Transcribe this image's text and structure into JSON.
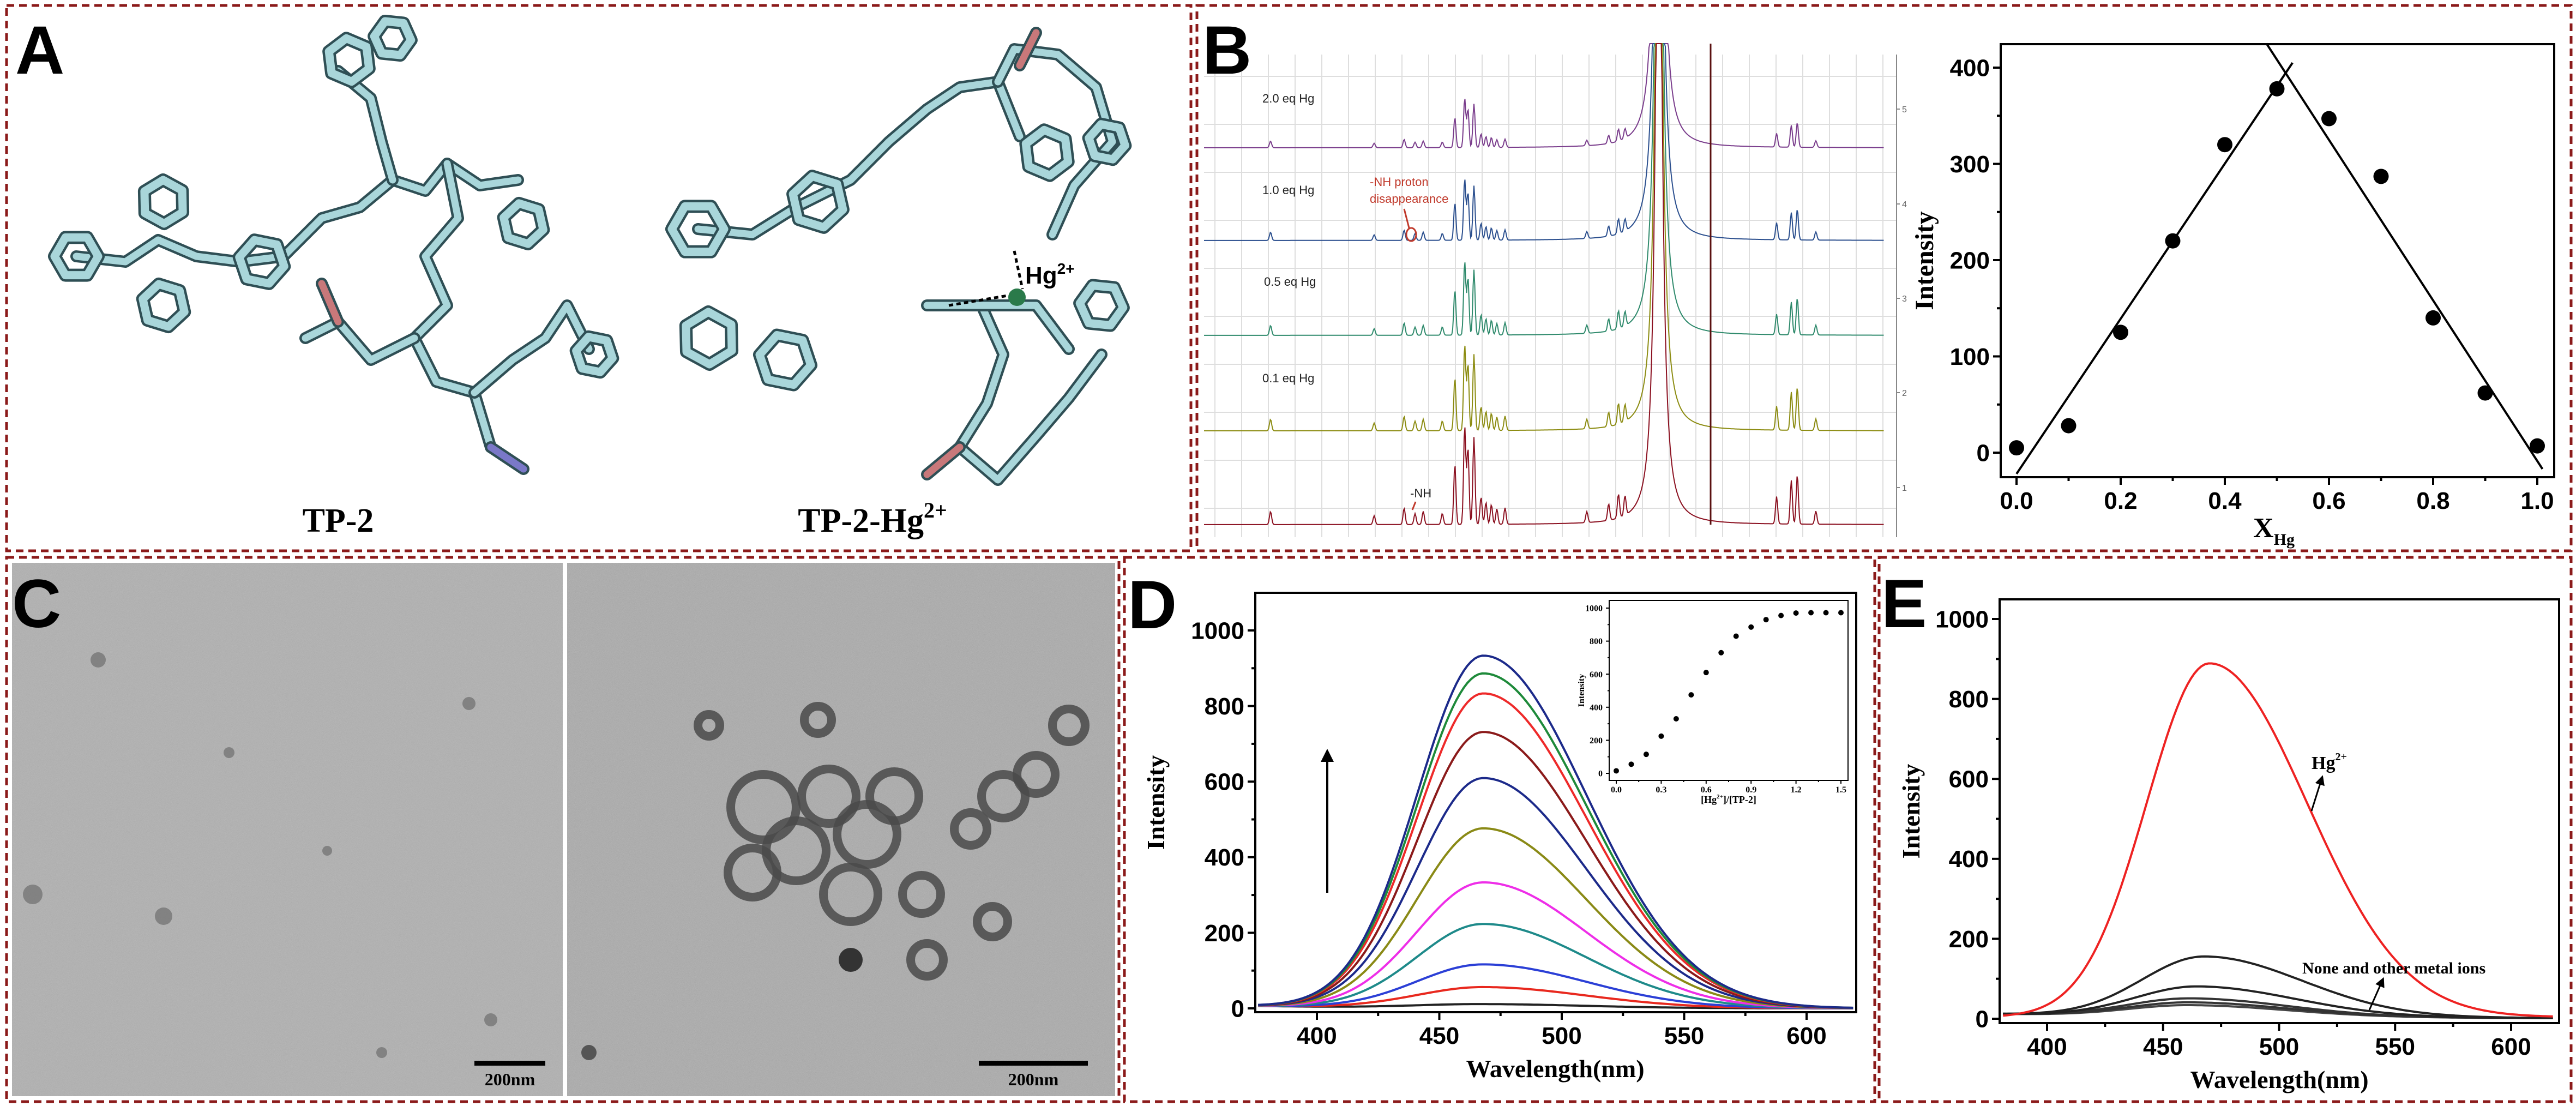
{
  "colors": {
    "panel_border": "#8b1a1a",
    "molecule": "#a9d6da",
    "highlight_red": "#e8281e"
  },
  "panel_a": {
    "letter": "A",
    "molecule_left_label": "TP-2",
    "molecule_right_label_base": "TP-2-Hg",
    "molecule_right_label_sup": "2+",
    "ion_label_base": "Hg",
    "ion_label_sup": "2+"
  },
  "panel_b": {
    "letter": "B",
    "nmr": {
      "spectra_labels": [
        "2.0 eq Hg",
        "1.0 eq Hg",
        "0.5 eq Hg",
        "0.1 eq Hg",
        ""
      ],
      "spectra_colors": [
        "#7a3d8c",
        "#2b4f8e",
        "#2f8a6c",
        "#8c8c12",
        "#8b1020"
      ],
      "axis_ticks": [
        "5",
        "4",
        "3",
        "2",
        "1"
      ],
      "annotation_line1": "-NH proton",
      "annotation_line2": "disappearance",
      "nh_label": "-NH"
    }
  },
  "panel_c": {
    "letter": "C",
    "scale_bar_left": "200nm",
    "scale_bar_right": "200nm"
  },
  "panel_d": {
    "letter": "D"
  },
  "panel_e": {
    "letter": "E",
    "annotation_hg_base": "Hg",
    "annotation_hg_sup": "2+",
    "annotation_others": "None and other metal ions"
  },
  "chart_data": [
    {
      "id": "job-plot",
      "type": "scatter",
      "xlabel": "X",
      "xlabel_sub": "Hg",
      "ylabel": "Intensity",
      "xlim": [
        -0.03,
        1.03
      ],
      "ylim": [
        -25,
        425
      ],
      "xticks": [
        "0.0",
        "0.2",
        "0.4",
        "0.6",
        "0.8",
        "1.0"
      ],
      "yticks": [
        "0",
        "100",
        "200",
        "300",
        "400"
      ],
      "x": [
        0.0,
        0.1,
        0.2,
        0.3,
        0.4,
        0.5,
        0.6,
        0.7,
        0.8,
        0.9,
        1.0
      ],
      "y": [
        5,
        28,
        125,
        220,
        320,
        378,
        347,
        287,
        140,
        62,
        7
      ],
      "fit_lines": [
        {
          "x": [
            0.0,
            0.53
          ],
          "y": [
            -22,
            405
          ]
        },
        {
          "x": [
            0.48,
            1.01
          ],
          "y": [
            425,
            -17
          ]
        }
      ]
    },
    {
      "id": "titration-spectra",
      "type": "line",
      "xlabel": "Wavelength(nm)",
      "ylabel": "Intensity",
      "xlim": [
        375,
        620
      ],
      "ylim": [
        0,
        1100
      ],
      "xticks": [
        "400",
        "450",
        "500",
        "550",
        "600"
      ],
      "yticks": [
        "0",
        "200",
        "400",
        "600",
        "800",
        "1000"
      ],
      "peak_wavelength": 468,
      "series": [
        {
          "peak": 10,
          "color": "#222222"
        },
        {
          "peak": 55,
          "color": "#e8281e"
        },
        {
          "peak": 115,
          "color": "#2b3fd6"
        },
        {
          "peak": 222,
          "color": "#1e8a8a"
        },
        {
          "peak": 332,
          "color": "#ee2ee8"
        },
        {
          "peak": 475,
          "color": "#8a8a16"
        },
        {
          "peak": 608,
          "color": "#1c2a8a"
        },
        {
          "peak": 730,
          "color": "#8b1a1a"
        },
        {
          "peak": 832,
          "color": "#ee2a2a"
        },
        {
          "peak": 885,
          "color": "#1e8a3a"
        },
        {
          "peak": 932,
          "color": "#1c2a8a"
        }
      ]
    },
    {
      "id": "titration-inset",
      "type": "scatter",
      "xlabel_parts": [
        "[Hg",
        "2+",
        "]/[TP-2]"
      ],
      "ylabel": "Intensity",
      "xlim": [
        -0.05,
        1.55
      ],
      "ylim": [
        -30,
        1050
      ],
      "xticks": [
        "0.0",
        "0.3",
        "0.6",
        "0.9",
        "1.2",
        "1.5"
      ],
      "yticks": [
        "0",
        "200",
        "400",
        "600",
        "800",
        "1000"
      ],
      "x": [
        0.0,
        0.1,
        0.2,
        0.3,
        0.4,
        0.5,
        0.6,
        0.7,
        0.8,
        0.9,
        1.0,
        1.1,
        1.2,
        1.3,
        1.4,
        1.5
      ],
      "y": [
        15,
        55,
        115,
        225,
        330,
        475,
        610,
        730,
        830,
        885,
        930,
        955,
        970,
        972,
        972,
        972
      ]
    },
    {
      "id": "selectivity-spectra",
      "type": "line",
      "xlabel": "Wavelength(nm)",
      "ylabel": "Intensity",
      "xlim": [
        380,
        620
      ],
      "ylim": [
        0,
        1050
      ],
      "xticks": [
        "400",
        "450",
        "500",
        "550",
        "600"
      ],
      "yticks": [
        "0",
        "200",
        "400",
        "600",
        "800",
        "1000"
      ],
      "series": [
        {
          "peak": 885,
          "peak_wavelength": 470,
          "color": "#ee2222"
        },
        {
          "peak": 150,
          "peak_wavelength": 468,
          "color": "#222222"
        },
        {
          "peak": 75,
          "peak_wavelength": 465,
          "color": "#222222"
        },
        {
          "peak": 45,
          "peak_wavelength": 462,
          "color": "#333333"
        },
        {
          "peak": 35,
          "peak_wavelength": 462,
          "color": "#333333"
        },
        {
          "peak": 28,
          "peak_wavelength": 462,
          "color": "#444444"
        }
      ]
    }
  ]
}
